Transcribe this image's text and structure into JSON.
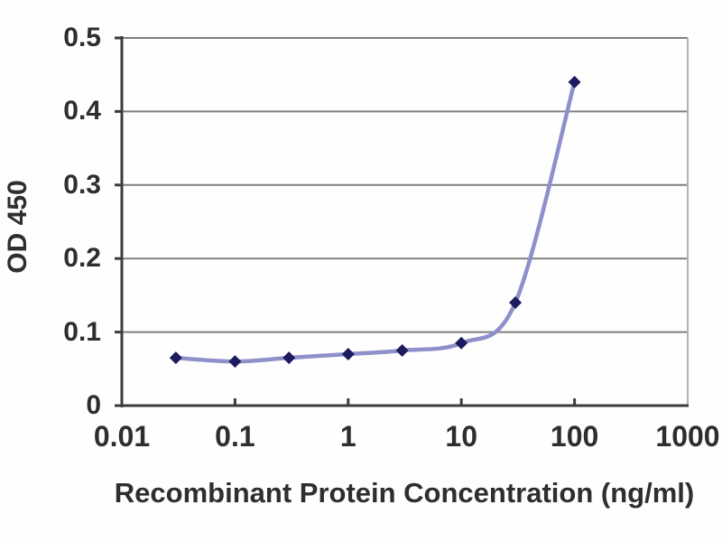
{
  "chart_data": {
    "type": "line",
    "title": "",
    "xlabel": "Recombinant Protein Concentration (ng/ml)",
    "ylabel": "OD 450",
    "x_scale": "log",
    "y_scale": "linear",
    "xlim": [
      0.01,
      1000
    ],
    "ylim": [
      0,
      0.5
    ],
    "x_tick_values": [
      0.01,
      0.1,
      1,
      10,
      100,
      1000
    ],
    "x_tick_labels": [
      "0.01",
      "0.1",
      "1",
      "10",
      "100",
      "1000"
    ],
    "y_tick_values": [
      0,
      0.1,
      0.2,
      0.3,
      0.4,
      0.5
    ],
    "y_tick_labels": [
      "0",
      "0.1",
      "0.2",
      "0.3",
      "0.4",
      "0.5"
    ],
    "grid": "horizontal-only",
    "legend": "none",
    "series": [
      {
        "name": "OD 450",
        "marker": "diamond",
        "smooth": true,
        "x": [
          0.03,
          0.1,
          0.3,
          1,
          3,
          10,
          30,
          100
        ],
        "y": [
          0.065,
          0.06,
          0.065,
          0.07,
          0.075,
          0.085,
          0.14,
          0.44
        ]
      }
    ],
    "colors": {
      "line": "#8f8fc9",
      "marker": "#1b1b5e",
      "grid": "#7f7f7f",
      "axis": "#3c3c3c",
      "plot_border_right": "#b2b2b2",
      "text": "#2e2e2e",
      "background": "#fefefe"
    }
  }
}
